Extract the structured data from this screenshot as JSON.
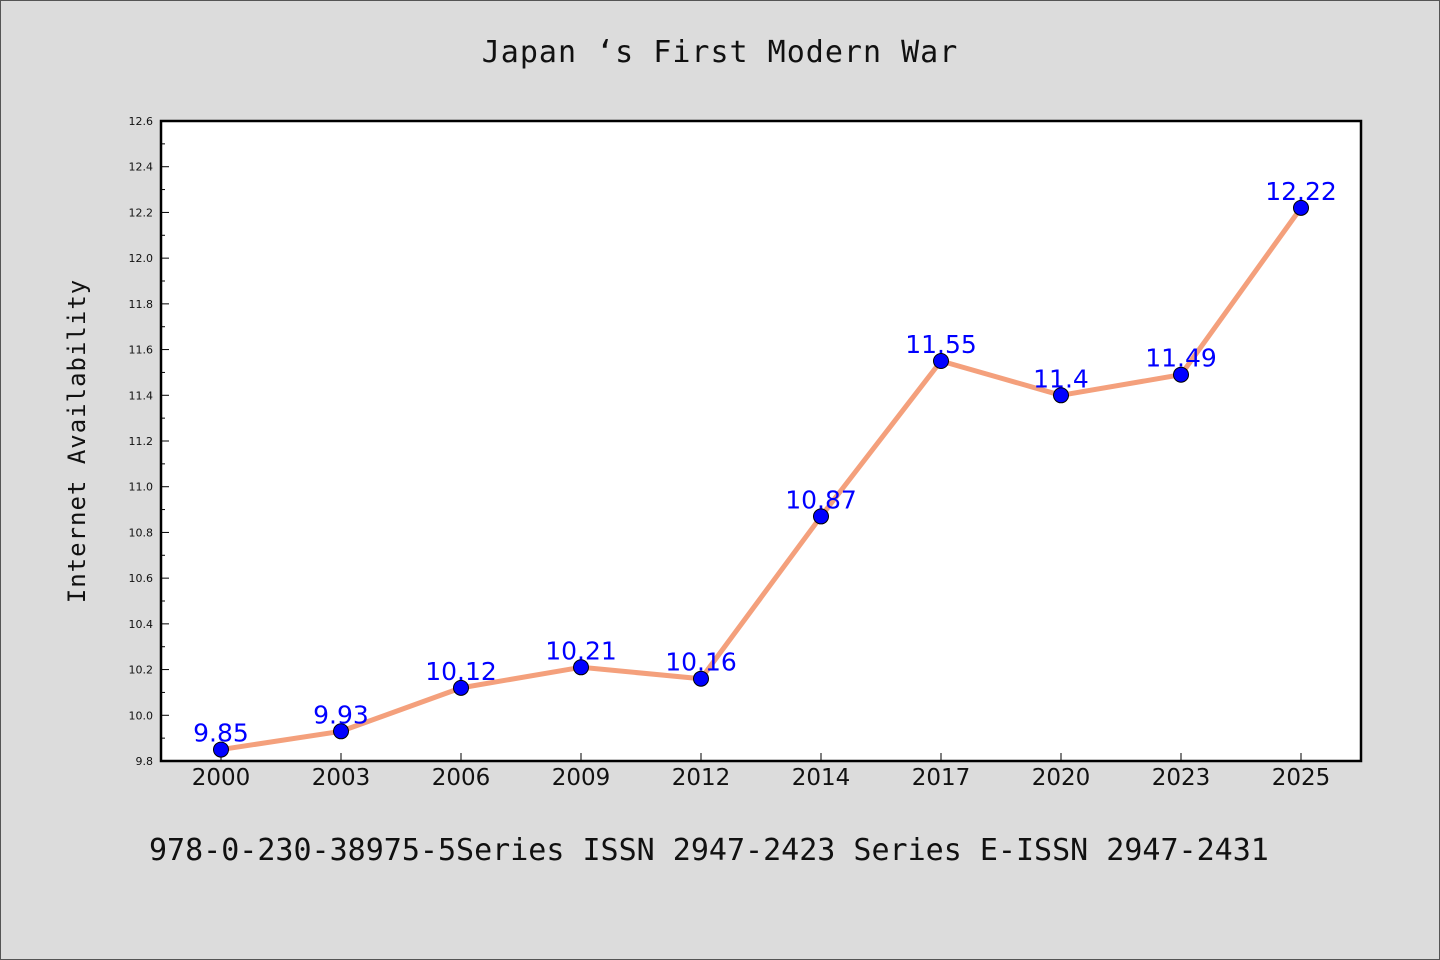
{
  "chart_data": {
    "type": "line",
    "title": "Japan ‘s First Modern War",
    "xlabel": "",
    "ylabel": "Internet Availability",
    "categories": [
      "2000",
      "2003",
      "2006",
      "2009",
      "2012",
      "2014",
      "2017",
      "2020",
      "2023",
      "2025"
    ],
    "series": [
      {
        "values": [
          9.85,
          9.93,
          10.12,
          10.21,
          10.16,
          10.87,
          11.55,
          11.4,
          11.49,
          12.22
        ],
        "data_labels": [
          "9.85",
          "9.93",
          "10.12",
          "10.21",
          "10.16",
          "10.87",
          "11.55",
          "11.4",
          "11.49",
          "12.22"
        ]
      }
    ],
    "ylim": [
      9.8,
      12.6
    ],
    "yticks": [
      "9.8",
      "10.0",
      "10.2",
      "10.4",
      "10.6",
      "10.8",
      "11.0",
      "11.2",
      "11.4",
      "11.6",
      "11.8",
      "12.0",
      "12.2",
      "12.4",
      "12.6"
    ],
    "grid": false,
    "colors": {
      "line": "#f4a07c",
      "marker": "#0000ff",
      "data_label": "#0000ff",
      "background": "#dcdcdc",
      "plot_background": "#ffffff"
    }
  },
  "footer": "978-0-230-38975-5Series ISSN 2947-2423 Series E-ISSN 2947-2431"
}
